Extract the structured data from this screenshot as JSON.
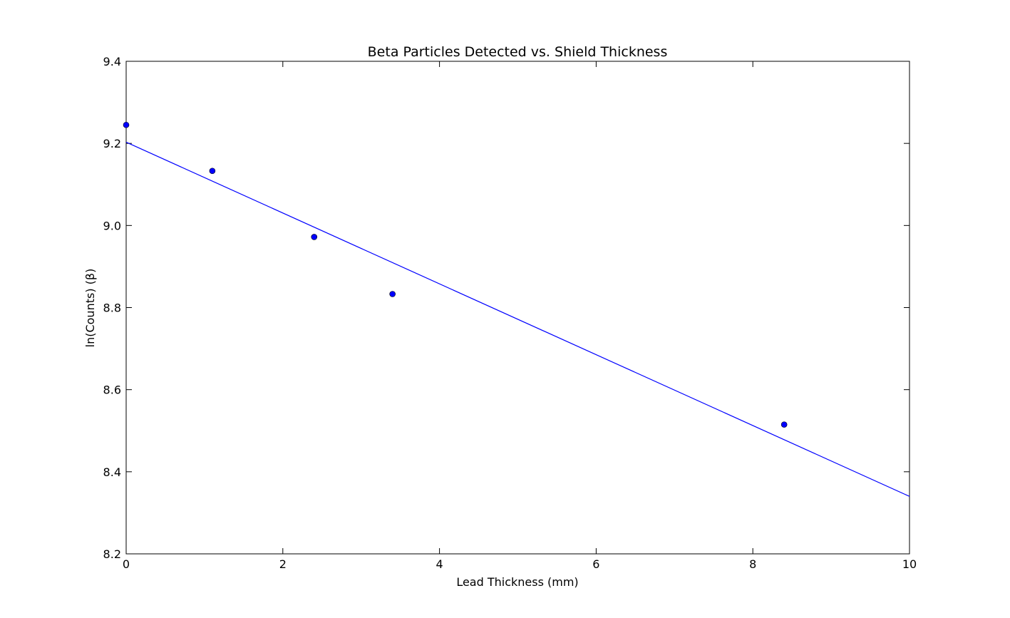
{
  "chart_data": {
    "type": "scatter",
    "title": "Beta Particles Detected vs. Shield Thickness",
    "xlabel": "Lead Thickness (mm)",
    "ylabel": "ln(Counts) (β)",
    "xlim": [
      0,
      10
    ],
    "ylim": [
      8.2,
      9.4
    ],
    "x_ticks": [
      "0",
      "2",
      "4",
      "6",
      "8",
      "10"
    ],
    "y_ticks": [
      "8.2",
      "8.4",
      "8.6",
      "8.8",
      "9.0",
      "9.2",
      "9.4"
    ],
    "grid": false,
    "legend": "none",
    "series": [
      {
        "type": "scatter",
        "color": "#0000ff",
        "points": [
          {
            "x": 0.0,
            "y": 9.245
          },
          {
            "x": 1.1,
            "y": 9.133
          },
          {
            "x": 2.4,
            "y": 8.972
          },
          {
            "x": 3.4,
            "y": 8.833
          },
          {
            "x": 8.4,
            "y": 8.515
          }
        ]
      },
      {
        "type": "line",
        "color": "#0000ff",
        "points": [
          {
            "x": 0.0,
            "y": 9.203
          },
          {
            "x": 10.0,
            "y": 8.34
          }
        ]
      }
    ]
  }
}
